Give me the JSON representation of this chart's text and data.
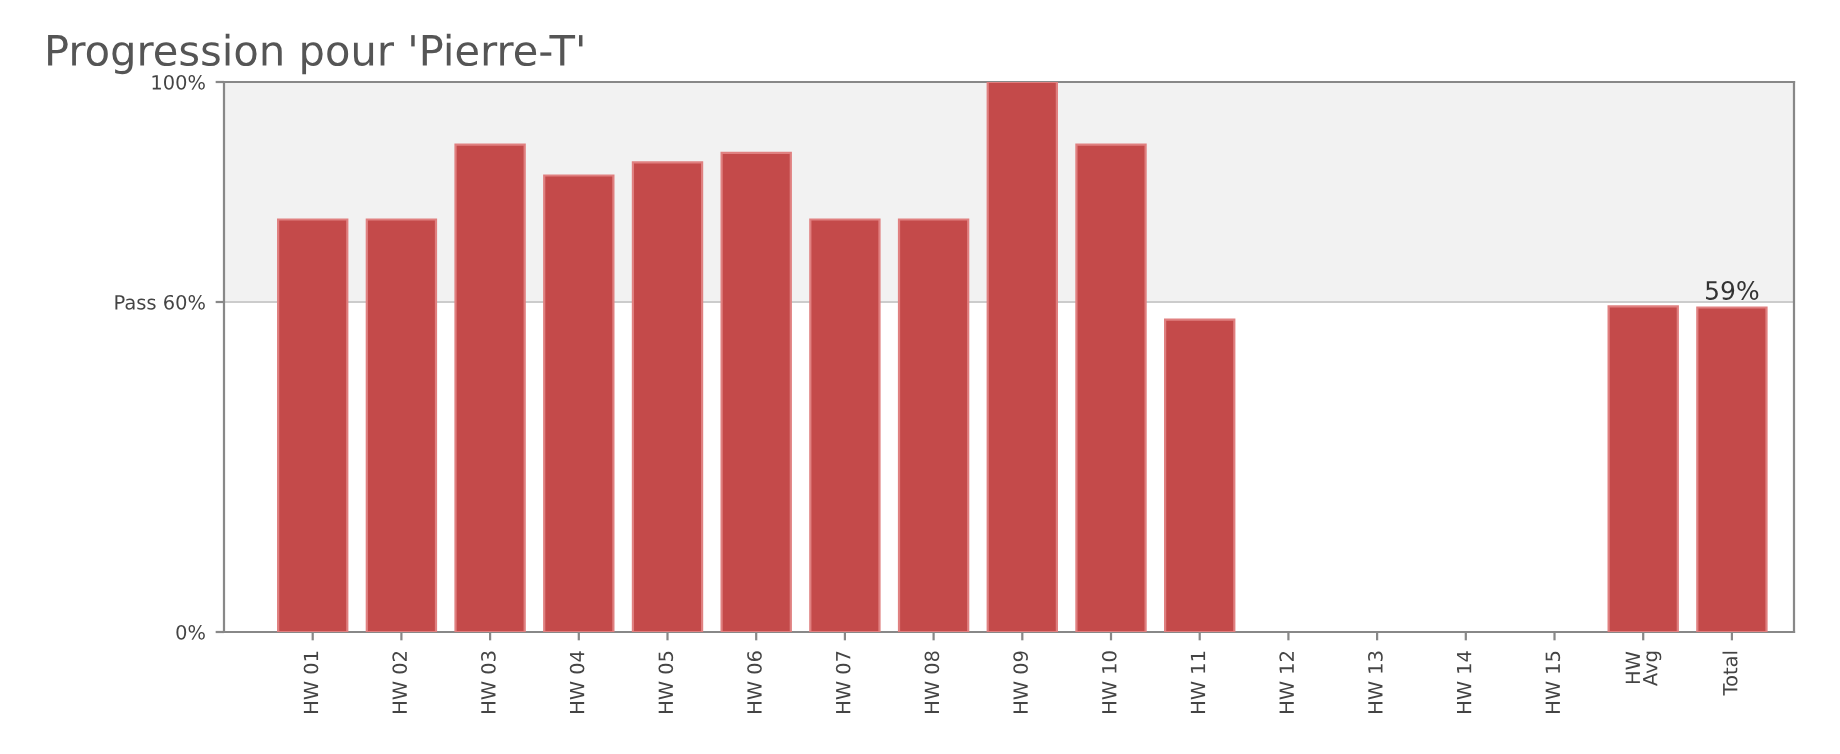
{
  "chart_data": {
    "type": "bar",
    "title": "Progression pour 'Pierre-T'",
    "categories": [
      "HW 01",
      "HW 02",
      "HW 03",
      "HW 04",
      "HW 05",
      "HW 06",
      "HW 07",
      "HW 08",
      "HW 09",
      "HW 10",
      "HW 11",
      "HW 12",
      "HW 13",
      "HW 14",
      "HW 15",
      "HW\nAvg",
      "Total"
    ],
    "values": [
      75,
      75,
      88.6,
      83,
      85.4,
      87.1,
      75,
      75,
      100,
      88.6,
      56.8,
      null,
      null,
      null,
      null,
      59.2,
      59
    ],
    "value_labels": [
      null,
      null,
      null,
      null,
      null,
      null,
      null,
      null,
      null,
      null,
      null,
      null,
      null,
      null,
      null,
      null,
      "59%"
    ],
    "color": "#c44a4a",
    "ylim": [
      0,
      100
    ],
    "yticks": [
      {
        "value": 0,
        "label": "0%"
      },
      {
        "value": 60,
        "label": "Pass 60%"
      },
      {
        "value": 100,
        "label": "100%"
      }
    ],
    "bands": [
      {
        "axis": "y",
        "from": 60,
        "to": 100,
        "color": "#f2f2f2"
      }
    ],
    "grid": "y"
  }
}
